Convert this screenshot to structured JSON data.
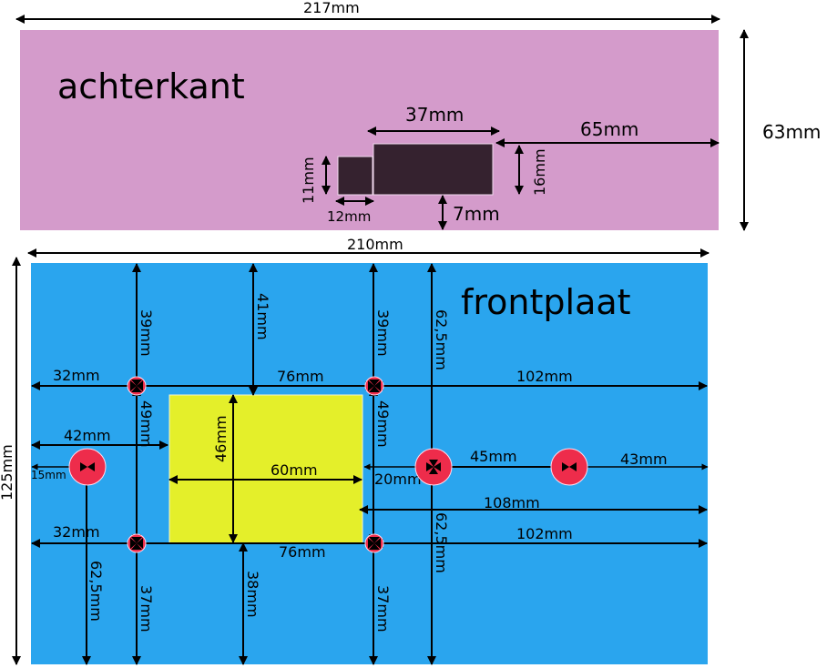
{
  "colors": {
    "back_panel": "#d49bcb",
    "front_panel": "#2aa5ee",
    "cutout": "#35222f",
    "display": "#e4ef2a",
    "hole": "#ee2c4b"
  },
  "back": {
    "title": "achterkant",
    "width": "217mm",
    "height": "63mm",
    "cutout_large_width": "37mm",
    "cutout_large_height": "16mm",
    "right_offset": "65mm",
    "bottom_offset": "7mm",
    "cutout_small_width": "12mm",
    "cutout_small_height": "11mm"
  },
  "front": {
    "title": "frontplaat",
    "width": "210mm",
    "height": "125mm",
    "d_39_left": "39mm",
    "d_41": "41mm",
    "d_39_right": "39mm",
    "d_62_5_top": "62,5mm",
    "d_32_top": "32mm",
    "d_76_top": "76mm",
    "d_102_top": "102mm",
    "d_49_left": "49mm",
    "d_49_right": "49mm",
    "d_42": "42mm",
    "d_46": "46mm",
    "d_15": "15mm",
    "d_60": "60mm",
    "d_45": "45mm",
    "d_43": "43mm",
    "d_20": "20mm",
    "d_108": "108mm",
    "d_32_bottom": "32mm",
    "d_102_bottom": "102mm",
    "d_76_bottom": "76mm",
    "d_62_5_bottom": "62,5mm",
    "d_62_5_left": "62,5mm",
    "d_37_left": "37mm",
    "d_38": "38mm",
    "d_37_right": "37mm"
  }
}
